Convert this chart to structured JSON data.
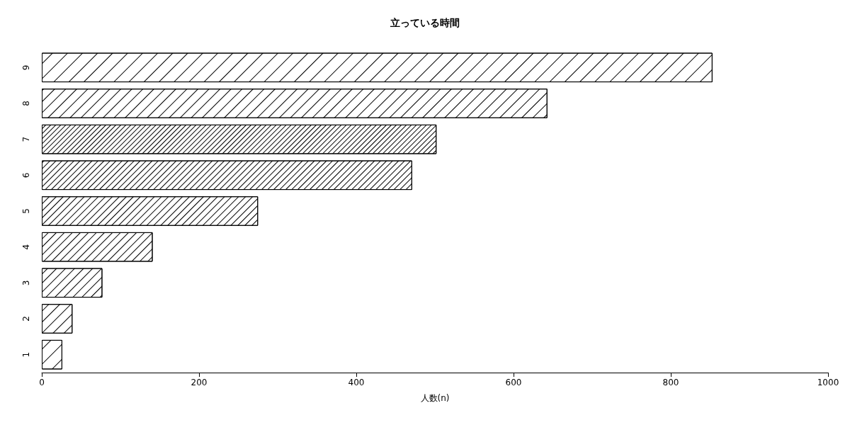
{
  "chart_data": {
    "type": "bar",
    "orientation": "horizontal",
    "title": "立っている時間",
    "xlabel": "人数(n)",
    "categories": [
      "9",
      "8",
      "7",
      "6",
      "5",
      "4",
      "3",
      "2",
      "1"
    ],
    "values": [
      853,
      643,
      502,
      471,
      275,
      141,
      77,
      39,
      26
    ],
    "color": "#ffffff",
    "xlim": [
      0,
      1000
    ],
    "xticks": [
      0,
      200,
      400,
      600,
      800,
      1000
    ],
    "grid": false
  }
}
